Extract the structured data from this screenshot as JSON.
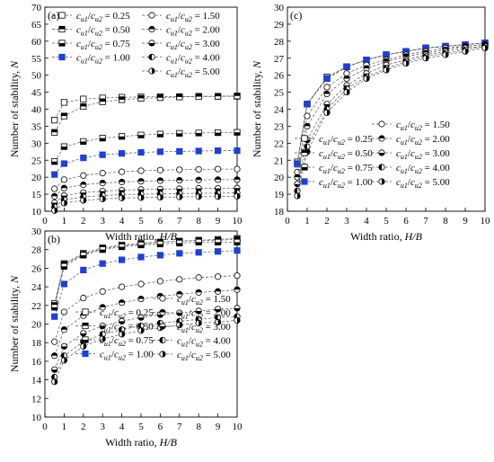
{
  "colors": {
    "highlight": "#1f3fd6",
    "ink": "#000000",
    "hollow": "#ffffff",
    "line": "#555555"
  },
  "chart_data": [
    {
      "id": "a",
      "panel_label": "(a)",
      "type": "line",
      "xlabel": "Width ratio, H/B",
      "ylabel": "Number of stability, N",
      "xlim": [
        0,
        10
      ],
      "ylim": [
        10,
        70
      ],
      "xticks": [
        0,
        1,
        2,
        3,
        4,
        5,
        6,
        7,
        8,
        9,
        10
      ],
      "yticks": [
        10,
        15,
        20,
        25,
        30,
        35,
        40,
        45,
        50,
        55,
        60,
        65,
        70
      ],
      "legend_placement": "top",
      "x": [
        0.5,
        1,
        2,
        3,
        4,
        5,
        6,
        7,
        8,
        9,
        10
      ],
      "series": [
        {
          "name": "cu1/cu2 = 0.25",
          "marker": "square-open",
          "values": [
            36.8,
            42.0,
            43.0,
            43.3,
            43.5,
            43.6,
            43.7,
            43.7,
            43.8,
            43.8,
            43.8
          ]
        },
        {
          "name": "cu1/cu2 = 0.50",
          "marker": "square-half-top",
          "values": [
            33.2,
            38.0,
            40.8,
            42.2,
            42.8,
            43.2,
            43.4,
            43.6,
            43.7,
            43.8,
            43.9
          ]
        },
        {
          "name": "cu1/cu2 = 0.75",
          "marker": "square-half-bottom",
          "values": [
            24.6,
            29.0,
            30.5,
            31.5,
            32.0,
            32.4,
            32.7,
            32.9,
            33.0,
            33.1,
            33.2
          ]
        },
        {
          "name": "cu1/cu2 = 1.00",
          "marker": "square-solid-blue",
          "values": [
            20.8,
            24.0,
            25.7,
            26.6,
            27.0,
            27.3,
            27.5,
            27.6,
            27.7,
            27.8,
            27.8
          ]
        },
        {
          "name": "cu1/cu2 = 1.50",
          "marker": "circle-open",
          "values": [
            16.6,
            19.3,
            20.5,
            21.2,
            21.6,
            21.9,
            22.1,
            22.2,
            22.3,
            22.4,
            22.4
          ]
        },
        {
          "name": "cu1/cu2 = 2.00",
          "marker": "circle-half-top",
          "values": [
            14.4,
            16.8,
            17.8,
            18.3,
            18.6,
            18.8,
            19.0,
            19.1,
            19.2,
            19.3,
            19.3
          ]
        },
        {
          "name": "cu1/cu2 = 3.00",
          "marker": "circle-half-bottom",
          "values": [
            12.5,
            14.6,
            15.5,
            15.9,
            16.2,
            16.4,
            16.5,
            16.6,
            16.7,
            16.7,
            16.8
          ]
        },
        {
          "name": "cu1/cu2 = 4.00",
          "marker": "circle-half-left",
          "values": [
            11.3,
            13.4,
            14.2,
            14.6,
            14.9,
            15.0,
            15.1,
            15.2,
            15.3,
            15.3,
            15.4
          ]
        },
        {
          "name": "cu1/cu2 = 5.00",
          "marker": "circle-half-right",
          "values": [
            10.2,
            12.4,
            13.2,
            13.6,
            13.9,
            14.0,
            14.1,
            14.2,
            14.3,
            14.3,
            14.4
          ]
        }
      ]
    },
    {
      "id": "b",
      "panel_label": "(b)",
      "type": "line",
      "xlabel": "Width ratio, H/B",
      "ylabel": "Number of stability, N",
      "xlim": [
        0,
        10
      ],
      "ylim": [
        10,
        30
      ],
      "xticks": [
        0,
        1,
        2,
        3,
        4,
        5,
        6,
        7,
        8,
        9,
        10
      ],
      "yticks": [
        10,
        12,
        14,
        16,
        18,
        20,
        22,
        24,
        26,
        28,
        30
      ],
      "legend_placement": "bottom-right",
      "x": [
        0.5,
        1,
        2,
        3,
        4,
        5,
        6,
        7,
        8,
        9,
        10
      ],
      "series": [
        {
          "name": "cu1/cu2 = 0.25",
          "marker": "square-open",
          "values": [
            22.2,
            26.5,
            27.6,
            28.2,
            28.5,
            28.7,
            28.8,
            28.9,
            29.0,
            29.1,
            29.2
          ]
        },
        {
          "name": "cu1/cu2 = 0.50",
          "marker": "square-half-top",
          "values": [
            22.0,
            26.4,
            27.5,
            28.1,
            28.4,
            28.6,
            28.8,
            28.9,
            29.0,
            29.0,
            29.1
          ]
        },
        {
          "name": "cu1/cu2 = 0.75",
          "marker": "square-half-bottom",
          "values": [
            21.8,
            26.2,
            27.4,
            28.0,
            28.3,
            28.5,
            28.6,
            28.7,
            28.8,
            28.8,
            28.8
          ]
        },
        {
          "name": "cu1/cu2 = 1.00",
          "marker": "square-solid-blue",
          "values": [
            20.8,
            24.3,
            25.8,
            26.5,
            26.9,
            27.2,
            27.4,
            27.6,
            27.7,
            27.8,
            27.9
          ]
        },
        {
          "name": "cu1/cu2 = 1.50",
          "marker": "circle-open",
          "values": [
            18.1,
            21.3,
            22.8,
            23.5,
            24.0,
            24.3,
            24.6,
            24.8,
            25.0,
            25.1,
            25.2
          ]
        },
        {
          "name": "cu1/cu2 = 2.00",
          "marker": "circle-half-top",
          "values": [
            16.6,
            19.4,
            20.9,
            21.8,
            22.3,
            22.7,
            23.0,
            23.2,
            23.4,
            23.5,
            23.7
          ]
        },
        {
          "name": "cu1/cu2 = 3.00",
          "marker": "circle-half-bottom",
          "values": [
            15.1,
            17.6,
            19.0,
            19.8,
            20.3,
            20.7,
            21.0,
            21.2,
            21.4,
            21.6,
            21.7
          ]
        },
        {
          "name": "cu1/cu2 = 4.00",
          "marker": "circle-half-left",
          "values": [
            14.3,
            16.6,
            18.1,
            18.9,
            19.4,
            19.8,
            20.1,
            20.3,
            20.5,
            20.7,
            20.8
          ]
        },
        {
          "name": "cu1/cu2 = 5.00",
          "marker": "circle-half-right",
          "values": [
            13.8,
            16.1,
            17.6,
            18.4,
            18.9,
            19.3,
            19.6,
            19.9,
            20.1,
            20.2,
            20.4
          ]
        }
      ]
    },
    {
      "id": "c",
      "panel_label": "(c)",
      "type": "line",
      "xlabel": "Width ratio, H/B",
      "ylabel": "Number of stability, N",
      "xlim": [
        0,
        10
      ],
      "ylim": [
        18,
        30
      ],
      "xticks": [
        0,
        1,
        2,
        3,
        4,
        5,
        6,
        7,
        8,
        9,
        10
      ],
      "yticks": [
        18,
        19,
        20,
        21,
        22,
        23,
        24,
        25,
        26,
        27,
        28,
        29,
        30
      ],
      "legend_placement": "bottom-right",
      "x": [
        0.5,
        1,
        2,
        3,
        4,
        5,
        6,
        7,
        8,
        9,
        10
      ],
      "series": [
        {
          "name": "cu1/cu2 = 0.25",
          "marker": "square-open",
          "values": [
            20.9,
            24.3,
            25.9,
            26.5,
            26.9,
            27.2,
            27.4,
            27.6,
            27.7,
            27.8,
            27.9
          ]
        },
        {
          "name": "cu1/cu2 = 0.50",
          "marker": "square-half-top",
          "values": [
            20.8,
            24.3,
            25.8,
            26.5,
            26.9,
            27.2,
            27.4,
            27.6,
            27.7,
            27.8,
            27.9
          ]
        },
        {
          "name": "cu1/cu2 = 0.75",
          "marker": "square-half-bottom",
          "values": [
            20.8,
            24.3,
            25.8,
            26.5,
            26.9,
            27.2,
            27.4,
            27.6,
            27.7,
            27.8,
            27.9
          ]
        },
        {
          "name": "cu1/cu2 = 1.00",
          "marker": "square-solid-blue",
          "values": [
            20.8,
            24.3,
            25.8,
            26.5,
            26.9,
            27.2,
            27.4,
            27.6,
            27.7,
            27.8,
            27.9
          ]
        },
        {
          "name": "cu1/cu2 = 1.50",
          "marker": "circle-open",
          "values": [
            20.3,
            23.6,
            25.3,
            26.1,
            26.6,
            26.9,
            27.2,
            27.4,
            27.6,
            27.7,
            27.8
          ]
        },
        {
          "name": "cu1/cu2 = 2.00",
          "marker": "circle-half-top",
          "values": [
            20.0,
            23.0,
            24.9,
            25.8,
            26.4,
            26.8,
            27.1,
            27.3,
            27.5,
            27.7,
            27.8
          ]
        },
        {
          "name": "cu1/cu2 = 3.00",
          "marker": "circle-half-bottom",
          "values": [
            19.6,
            22.2,
            24.3,
            25.4,
            26.1,
            26.6,
            26.9,
            27.2,
            27.4,
            27.6,
            27.7
          ]
        },
        {
          "name": "cu1/cu2 = 4.00",
          "marker": "circle-half-left",
          "values": [
            19.2,
            21.8,
            24.0,
            25.2,
            25.9,
            26.4,
            26.8,
            27.1,
            27.3,
            27.5,
            27.7
          ]
        },
        {
          "name": "cu1/cu2 = 5.00",
          "marker": "circle-half-right",
          "values": [
            18.9,
            21.5,
            23.8,
            25.0,
            25.8,
            26.3,
            26.7,
            27.0,
            27.2,
            27.4,
            27.6
          ]
        }
      ]
    }
  ]
}
